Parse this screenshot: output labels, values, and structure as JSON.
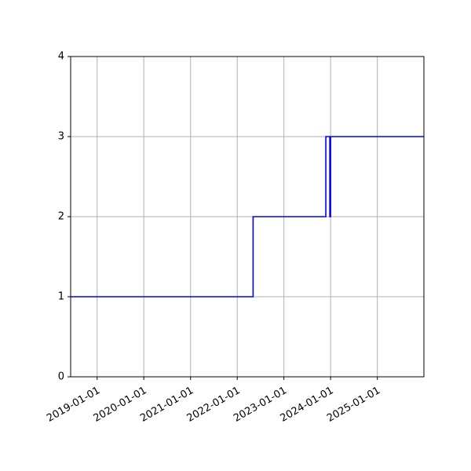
{
  "chart_data": {
    "type": "line",
    "title": "",
    "xlabel": "",
    "ylabel": "",
    "x_type": "date",
    "xlim": [
      "2018-06-08",
      "2025-12-31"
    ],
    "ylim": [
      0,
      4
    ],
    "grid": true,
    "legend": "none",
    "x_ticks": [
      "2019-01-01",
      "2020-01-01",
      "2021-01-01",
      "2022-01-01",
      "2023-01-01",
      "2024-01-01",
      "2025-01-01"
    ],
    "y_ticks": [
      0,
      1,
      2,
      3,
      4
    ],
    "series": [
      {
        "color": "#0000ff",
        "step": "post",
        "points": [
          {
            "x": "2018-06-08",
            "y": 1
          },
          {
            "x": "2022-05-05",
            "y": 2
          },
          {
            "x": "2023-11-25",
            "y": 3
          },
          {
            "x": "2023-12-26",
            "y": 2
          },
          {
            "x": "2024-01-01",
            "y": 3
          },
          {
            "x": "2025-12-31",
            "y": 3
          }
        ]
      }
    ]
  }
}
